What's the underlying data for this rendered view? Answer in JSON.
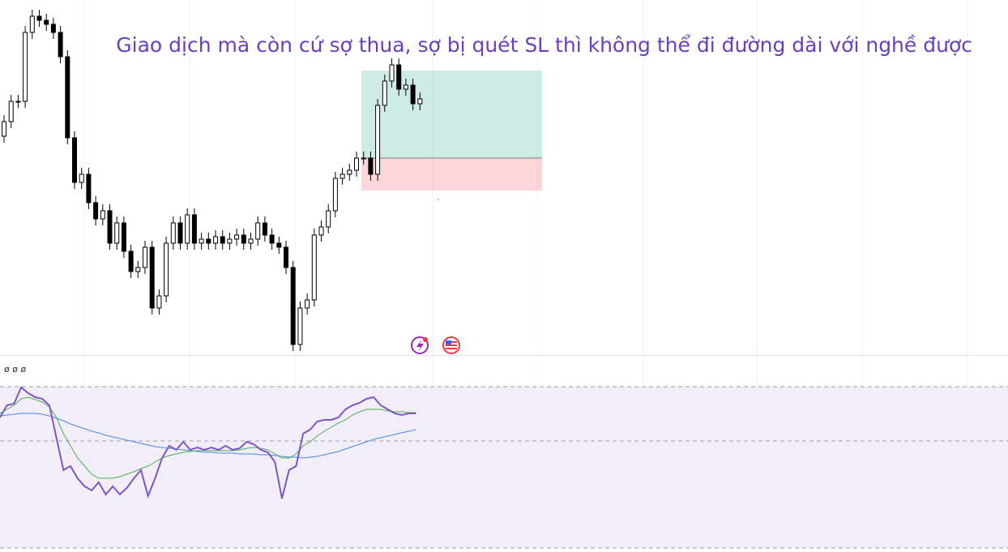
{
  "chart_data": [
    {
      "type": "candlestick",
      "title": "Giao dịch mà còn cứ sợ thua, sợ bị quét SL thì không thể đi đường dài với nghề được",
      "ylim": [
        0,
        438
      ],
      "open": [
        270,
        288,
        313,
        313,
        398,
        418,
        413,
        408,
        398,
        368,
        268,
        213,
        223,
        188,
        168,
        178,
        138,
        163,
        128,
        103,
        108,
        133,
        58,
        73,
        138,
        163,
        138,
        173,
        138,
        143,
        138,
        146,
        138,
        143,
        148,
        138,
        143,
        163,
        148,
        138,
        133,
        108,
        13,
        58,
        68,
        148,
        158,
        178,
        218,
        223,
        228,
        243,
        243,
        223,
        308,
        338,
        358,
        328,
        333,
        310
      ],
      "high": [
        296,
        321,
        321,
        406,
        426,
        426,
        421,
        416,
        406,
        376,
        276,
        231,
        231,
        196,
        186,
        186,
        171,
        171,
        136,
        116,
        141,
        141,
        81,
        146,
        171,
        171,
        181,
        181,
        151,
        151,
        154,
        154,
        151,
        156,
        156,
        151,
        171,
        171,
        156,
        146,
        141,
        116,
        66,
        76,
        156,
        166,
        186,
        226,
        231,
        236,
        251,
        251,
        251,
        316,
        346,
        366,
        366,
        341,
        341,
        324
      ],
      "low": [
        262,
        280,
        305,
        305,
        390,
        405,
        400,
        390,
        360,
        260,
        205,
        205,
        180,
        160,
        160,
        130,
        130,
        120,
        95,
        95,
        100,
        50,
        50,
        65,
        130,
        130,
        130,
        130,
        130,
        130,
        130,
        130,
        130,
        135,
        130,
        130,
        135,
        140,
        130,
        125,
        100,
        5,
        5,
        50,
        60,
        140,
        150,
        170,
        210,
        215,
        220,
        235,
        215,
        215,
        300,
        330,
        320,
        320,
        302,
        302
      ],
      "close": [
        288,
        313,
        313,
        398,
        418,
        413,
        408,
        398,
        368,
        268,
        213,
        223,
        188,
        168,
        178,
        138,
        163,
        128,
        103,
        108,
        133,
        58,
        73,
        138,
        163,
        138,
        173,
        138,
        143,
        138,
        146,
        138,
        143,
        148,
        138,
        143,
        163,
        148,
        138,
        133,
        108,
        13,
        58,
        68,
        148,
        158,
        178,
        218,
        223,
        228,
        243,
        243,
        223,
        308,
        338,
        358,
        328,
        333,
        310,
        316
      ],
      "position": {
        "entry": 243,
        "take_profit": 351,
        "stop_loss": 203
      }
    },
    {
      "type": "line",
      "title": "ø ø ø",
      "ylim": [
        0,
        243
      ],
      "series": [
        {
          "color": "#7e57c2",
          "values": [
            166,
            181,
            183,
            203,
            196,
            191,
            189,
            181,
            141,
            101,
            106,
            91,
            81,
            76,
            86,
            71,
            81,
            71,
            79,
            91,
            101,
            69,
            91,
            116,
            131,
            126,
            136,
            126,
            129,
            126,
            129,
            126,
            131,
            126,
            128,
            136,
            133,
            126,
            123,
            111,
            66,
            101,
            106,
            146,
            151,
            161,
            163,
            163,
            166,
            176,
            181,
            184,
            189,
            191,
            181,
            176,
            171,
            169,
            171,
            171
          ]
        },
        {
          "color": "#4caf50",
          "values": [
            171,
            176,
            181,
            189,
            191,
            188,
            185,
            179,
            166,
            146,
            131,
            116,
            106,
            96,
            91,
            91,
            91,
            93,
            96,
            99,
            103,
            106,
            111,
            116,
            119,
            121,
            123,
            124,
            125,
            125,
            125,
            125,
            125,
            125,
            126,
            128,
            129,
            128,
            126,
            121,
            116,
            116,
            121,
            131,
            136,
            143,
            149,
            154,
            159,
            163,
            169,
            173,
            176,
            176,
            176,
            174,
            173,
            173,
            172,
            172
          ]
        },
        {
          "color": "#4a8be8",
          "values": [
            168,
            169,
            170,
            171,
            171,
            171,
            170,
            168,
            165,
            162,
            158,
            155,
            152,
            149,
            147,
            144,
            142,
            140,
            138,
            136,
            134,
            132,
            130,
            129,
            128,
            127,
            126,
            125,
            124,
            123,
            123,
            122,
            122,
            122,
            121,
            121,
            121,
            120,
            120,
            119,
            118,
            117,
            117,
            116,
            117,
            118,
            120,
            122,
            124,
            127,
            130,
            133,
            136,
            139,
            141,
            143,
            145,
            147,
            149,
            151
          ]
        }
      ]
    }
  ]
}
